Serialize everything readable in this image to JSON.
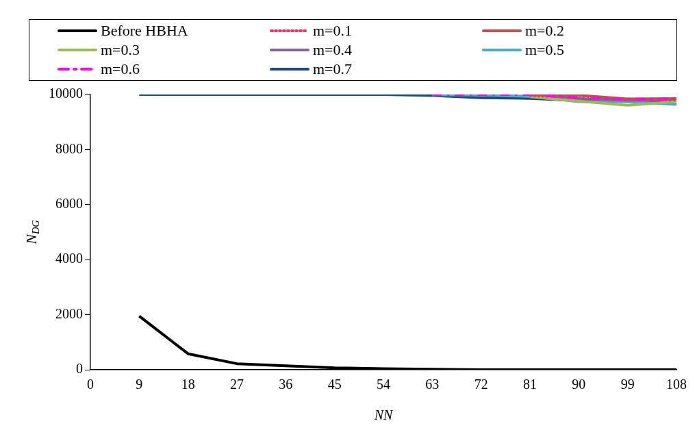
{
  "chart_data": {
    "type": "line",
    "xlabel": "NN",
    "ylabel": "N$_{DG}$",
    "x": [
      9,
      18,
      27,
      36,
      45,
      54,
      63,
      72,
      81,
      90,
      99,
      108
    ],
    "xlim": [
      0,
      108
    ],
    "xticks": [
      0,
      9,
      18,
      27,
      36,
      45,
      54,
      63,
      72,
      81,
      90,
      99,
      108
    ],
    "ylim": [
      0,
      10000
    ],
    "yticks": [
      0,
      2000,
      4000,
      6000,
      8000,
      10000
    ],
    "grid": false,
    "legend": "top",
    "marker": "none",
    "series": [
      {
        "name": "Before HBHA",
        "color": "#000000",
        "line_style": "solid",
        "values": [
          1950,
          580,
          220,
          140,
          70,
          40,
          20,
          0,
          0,
          0,
          0,
          0
        ]
      },
      {
        "name": "m=0.1",
        "color": "#e8336b",
        "line_style": "dotted",
        "values": [
          null,
          null,
          null,
          null,
          null,
          null,
          null,
          null,
          9960,
          9900,
          9800,
          9800
        ]
      },
      {
        "name": "m=0.2",
        "color": "#c0504d",
        "line_style": "solid",
        "values": [
          null,
          null,
          null,
          null,
          null,
          null,
          null,
          null,
          9980,
          9970,
          9840,
          9850
        ]
      },
      {
        "name": "m=0.3",
        "color": "#9bbb59",
        "line_style": "solid",
        "values": [
          null,
          null,
          null,
          null,
          null,
          null,
          null,
          null,
          9920,
          9760,
          9610,
          9740
        ]
      },
      {
        "name": "m=0.4",
        "color": "#8064a2",
        "line_style": "solid",
        "values": [
          null,
          null,
          null,
          null,
          null,
          null,
          null,
          null,
          9940,
          9850,
          9790,
          9800
        ]
      },
      {
        "name": "m=0.5",
        "color": "#4bacc6",
        "line_style": "solid",
        "values": [
          null,
          null,
          null,
          null,
          null,
          null,
          9990,
          9980,
          9930,
          9740,
          9740,
          9640
        ]
      },
      {
        "name": "m=0.6",
        "color": "#ff00ff",
        "line_style": "dashed",
        "values": [
          null,
          null,
          null,
          null,
          null,
          null,
          10000,
          10000,
          10000,
          9880,
          9830,
          9830
        ]
      },
      {
        "name": "m=0.7",
        "color": "#1f497d",
        "line_style": "solid",
        "values": [
          10000,
          10000,
          10000,
          10000,
          10000,
          10000,
          9960,
          9880,
          9860,
          9780,
          9780,
          9760
        ]
      }
    ]
  }
}
